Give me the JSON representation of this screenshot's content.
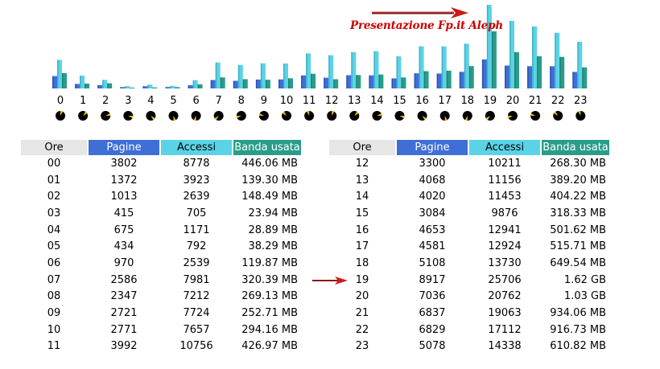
{
  "chart_data": {
    "type": "bar",
    "title": "Presentazione Fp.it Aleph",
    "categories": [
      "0",
      "1",
      "2",
      "3",
      "4",
      "5",
      "6",
      "7",
      "8",
      "9",
      "10",
      "11",
      "12",
      "13",
      "14",
      "15",
      "16",
      "17",
      "18",
      "19",
      "20",
      "21",
      "22",
      "23"
    ],
    "series": [
      {
        "name": "Pagine",
        "values": [
          3802,
          1372,
          1013,
          415,
          675,
          434,
          970,
          2586,
          2347,
          2721,
          2771,
          3992,
          3300,
          4068,
          4020,
          3084,
          4653,
          4581,
          5108,
          8917,
          7036,
          6837,
          6829,
          5078
        ]
      },
      {
        "name": "Accessi",
        "values": [
          8778,
          3923,
          2639,
          705,
          1171,
          792,
          2539,
          7981,
          7212,
          7724,
          7657,
          10756,
          10211,
          11156,
          11453,
          9876,
          12941,
          12924,
          13730,
          25706,
          20762,
          19063,
          17112,
          14338
        ]
      },
      {
        "name": "Banda usata",
        "values": [
          446.06,
          139.3,
          148.49,
          23.94,
          28.89,
          38.29,
          119.87,
          320.39,
          269.13,
          252.71,
          294.16,
          426.97,
          268.3,
          389.2,
          404.22,
          318.33,
          501.62,
          515.71,
          649.54,
          1658.88,
          1054.72,
          934.06,
          916.73,
          610.82
        ]
      }
    ],
    "ylim": [
      0,
      25706
    ],
    "legend": "none",
    "grid": false
  },
  "colors": {
    "pagine": "#3f6fd6",
    "accessi": "#5ad3e6",
    "banda": "#2a9d8a",
    "ore_header": "#e6e6e6",
    "arrow": "#cc1a1a",
    "title": "#cc0000"
  },
  "table": {
    "headers": {
      "ore": "Ore",
      "pagine": "Pagine",
      "accessi": "Accessi",
      "banda": "Banda usata"
    },
    "left": [
      {
        "ore": "00",
        "pagine": "3802",
        "accessi": "8778",
        "banda": "446.06 MB"
      },
      {
        "ore": "01",
        "pagine": "1372",
        "accessi": "3923",
        "banda": "139.30 MB"
      },
      {
        "ore": "02",
        "pagine": "1013",
        "accessi": "2639",
        "banda": "148.49 MB"
      },
      {
        "ore": "03",
        "pagine": "415",
        "accessi": "705",
        "banda": "23.94 MB"
      },
      {
        "ore": "04",
        "pagine": "675",
        "accessi": "1171",
        "banda": "28.89 MB"
      },
      {
        "ore": "05",
        "pagine": "434",
        "accessi": "792",
        "banda": "38.29 MB"
      },
      {
        "ore": "06",
        "pagine": "970",
        "accessi": "2539",
        "banda": "119.87 MB"
      },
      {
        "ore": "07",
        "pagine": "2586",
        "accessi": "7981",
        "banda": "320.39 MB"
      },
      {
        "ore": "08",
        "pagine": "2347",
        "accessi": "7212",
        "banda": "269.13 MB"
      },
      {
        "ore": "09",
        "pagine": "2721",
        "accessi": "7724",
        "banda": "252.71 MB"
      },
      {
        "ore": "10",
        "pagine": "2771",
        "accessi": "7657",
        "banda": "294.16 MB"
      },
      {
        "ore": "11",
        "pagine": "3992",
        "accessi": "10756",
        "banda": "426.97 MB"
      }
    ],
    "right": [
      {
        "ore": "12",
        "pagine": "3300",
        "accessi": "10211",
        "banda": "268.30 MB"
      },
      {
        "ore": "13",
        "pagine": "4068",
        "accessi": "11156",
        "banda": "389.20 MB"
      },
      {
        "ore": "14",
        "pagine": "4020",
        "accessi": "11453",
        "banda": "404.22 MB"
      },
      {
        "ore": "15",
        "pagine": "3084",
        "accessi": "9876",
        "banda": "318.33 MB"
      },
      {
        "ore": "16",
        "pagine": "4653",
        "accessi": "12941",
        "banda": "501.62 MB"
      },
      {
        "ore": "17",
        "pagine": "4581",
        "accessi": "12924",
        "banda": "515.71 MB"
      },
      {
        "ore": "18",
        "pagine": "5108",
        "accessi": "13730",
        "banda": "649.54 MB"
      },
      {
        "ore": "19",
        "pagine": "8917",
        "accessi": "25706",
        "banda": "1.62 GB"
      },
      {
        "ore": "20",
        "pagine": "7036",
        "accessi": "20762",
        "banda": "1.03 GB"
      },
      {
        "ore": "21",
        "pagine": "6837",
        "accessi": "19063",
        "banda": "934.06 MB"
      },
      {
        "ore": "22",
        "pagine": "6829",
        "accessi": "17112",
        "banda": "916.73 MB"
      },
      {
        "ore": "23",
        "pagine": "5078",
        "accessi": "14338",
        "banda": "610.82 MB"
      }
    ]
  },
  "icons": {
    "clock": "clock-icon",
    "arrow": "red-arrow-icon"
  }
}
